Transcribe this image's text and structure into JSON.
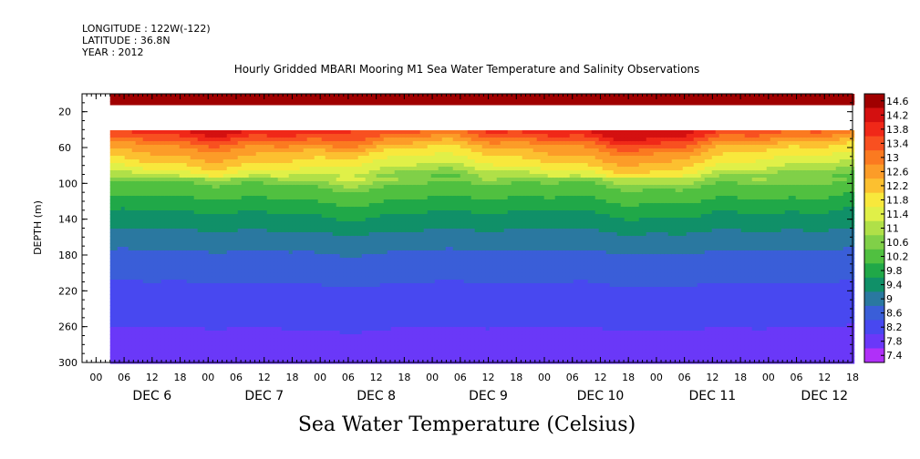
{
  "header": {
    "longitude": "LONGITUDE : 122W(-122)",
    "latitude": "LATITUDE : 36.8N",
    "year": "YEAR : 2012",
    "title": "Hourly Gridded MBARI Mooring M1 Sea Water Temperature and Salinity Observations"
  },
  "chart_data": {
    "type": "heatmap",
    "title": "Hourly Gridded MBARI Mooring M1 Sea Water Temperature and Salinity Observations",
    "subtitle": "Sea Water Temperature (Celsius)",
    "ylabel": "DEPTH (m)",
    "xlabel": "",
    "y_inverted": true,
    "ylim": [
      300,
      0
    ],
    "y_ticks": [
      20,
      60,
      100,
      140,
      180,
      220,
      260,
      300
    ],
    "x_hour_ticks": [
      "00",
      "06",
      "12",
      "18",
      "00",
      "06",
      "12",
      "18",
      "00",
      "06",
      "12",
      "18",
      "00",
      "06",
      "12",
      "18",
      "00",
      "06",
      "12",
      "18",
      "00",
      "06",
      "12",
      "18",
      "00",
      "06",
      "12",
      "18"
    ],
    "x_day_labels": [
      "DEC  6",
      "DEC  7",
      "DEC  8",
      "DEC  9",
      "DEC 10",
      "DEC 11",
      "DEC 12"
    ],
    "x_start_hour": -3,
    "x_end_hour": 162,
    "data_start_hour": 3,
    "colorbar_levels": [
      14.6,
      14.2,
      13.8,
      13.4,
      13,
      12.6,
      12.2,
      11.8,
      11.4,
      11,
      10.6,
      10.2,
      9.8,
      9.4,
      9,
      8.6,
      8.2,
      7.8,
      7.4
    ],
    "colorbar_colors": [
      "#a00000",
      "#d41010",
      "#f02818",
      "#f85020",
      "#fb7a20",
      "#fc9c28",
      "#fcc030",
      "#f8e83c",
      "#e0f048",
      "#b0e048",
      "#80d048",
      "#50c040",
      "#20a848",
      "#109068",
      "#2a78a0",
      "#3a5ed8",
      "#4848f0",
      "#6a38f8",
      "#b030f8"
    ],
    "depth_profile_typical": [
      {
        "depth": 10,
        "temp": 14.5
      },
      {
        "depth": 40,
        "temp": 14.0
      },
      {
        "depth": 60,
        "temp": 12.6
      },
      {
        "depth": 80,
        "temp": 11.8
      },
      {
        "depth": 100,
        "temp": 10.6
      },
      {
        "depth": 140,
        "temp": 9.6
      },
      {
        "depth": 180,
        "temp": 8.9
      },
      {
        "depth": 220,
        "temp": 8.5
      },
      {
        "depth": 260,
        "temp": 8.2
      },
      {
        "depth": 300,
        "temp": 7.8
      }
    ],
    "no_data_depth_range": [
      15,
      38
    ]
  }
}
